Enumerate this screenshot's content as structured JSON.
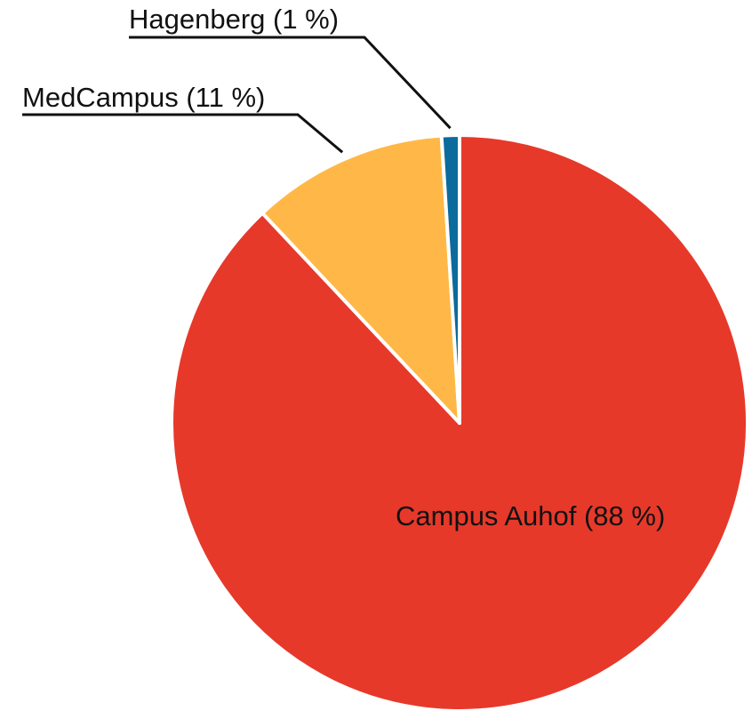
{
  "chart_data": {
    "type": "pie",
    "values": [
      88,
      11,
      1
    ],
    "value_labels": [
      "Campus Auhof (88 %)",
      "MedCampus (11 %)",
      "Hagenberg (1 %)"
    ],
    "colors": [
      "#e6392a",
      "#ffb847",
      "#0b6b9c"
    ]
  }
}
